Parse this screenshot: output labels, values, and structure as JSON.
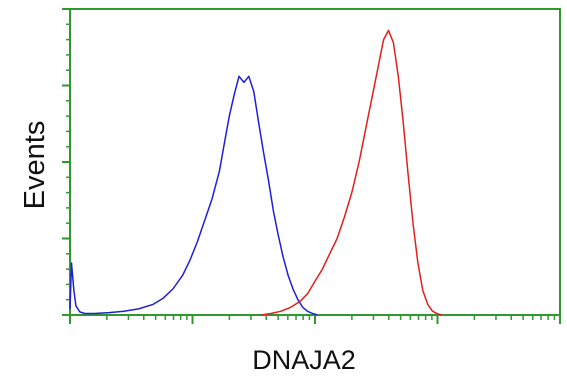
{
  "chart_data": {
    "type": "line",
    "title": "",
    "xlabel": "DNAJA2",
    "ylabel": "Events",
    "grid": false,
    "legend": "none",
    "xlim": [
      0,
      100
    ],
    "ylim": [
      0,
      100
    ],
    "axis_color": "#2e9a2e",
    "series": [
      {
        "color": "#1f1fd6",
        "x": [
          0,
          0.3,
          0.8,
          1.2,
          2,
          3,
          5,
          8,
          11,
          14,
          17,
          19,
          21,
          23,
          24.5,
          26,
          27.5,
          29,
          30.5,
          31.5,
          32.5,
          33.5,
          34.5,
          35.5,
          36.5,
          37.5,
          38.5,
          39.5,
          40.5,
          41.5,
          42.5,
          43.5,
          44.5,
          45.5,
          46.5,
          47.5,
          48.5,
          49.5,
          50.5
        ],
        "y": [
          2,
          17,
          8,
          3,
          1,
          0.5,
          0.5,
          0.8,
          1.2,
          2,
          3.5,
          5.5,
          8.5,
          13,
          18,
          24,
          31,
          38,
          47,
          56,
          65,
          72,
          78,
          76,
          78,
          73,
          63,
          53,
          44,
          34,
          26,
          19,
          13,
          8.5,
          5,
          2.5,
          1.2,
          0.5,
          0
        ]
      },
      {
        "color": "#e01f1f",
        "x": [
          39,
          41,
          43,
          45,
          47,
          48.5,
          50,
          51.5,
          53,
          54.5,
          56,
          57.5,
          59,
          60.5,
          62,
          63,
          64,
          65,
          66,
          67,
          68,
          69,
          70,
          71,
          72,
          73,
          74,
          75,
          76
        ],
        "y": [
          0,
          0.5,
          1.2,
          2.5,
          4.5,
          7,
          11,
          15,
          20,
          25,
          32,
          40,
          50,
          62,
          74,
          82,
          90,
          93,
          89,
          78,
          63,
          46,
          30,
          17,
          8,
          3.5,
          1.2,
          0.4,
          0
        ]
      }
    ]
  }
}
